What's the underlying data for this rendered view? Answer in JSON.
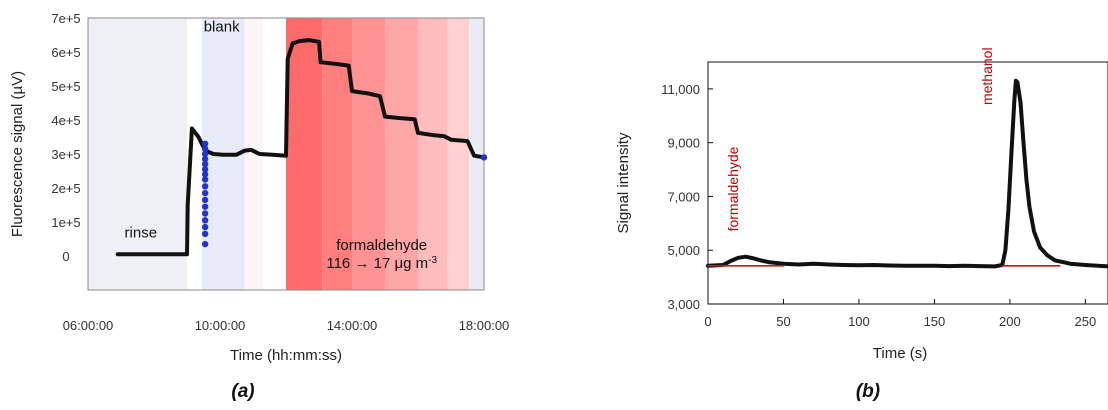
{
  "chart_data": [
    {
      "type": "line",
      "panel_label": "(a)",
      "xlabel": "Time (hh:mm:ss)",
      "ylabel": "Fluorescence signal (µV)",
      "xlim": [
        6.0,
        18.0
      ],
      "ylim": [
        -100000,
        700000
      ],
      "x_unit": "hours",
      "x_ticks": [
        {
          "value": 6,
          "label": "06:00:00"
        },
        {
          "value": 10,
          "label": "10:00:00"
        },
        {
          "value": 14,
          "label": "14:00:00"
        },
        {
          "value": 18,
          "label": "18:00:00"
        }
      ],
      "y_ticks": [
        {
          "value": 0,
          "label": "0"
        },
        {
          "value": 100000,
          "label": "1e+5"
        },
        {
          "value": 200000,
          "label": "2e+5"
        },
        {
          "value": 300000,
          "label": "3e+5"
        },
        {
          "value": 400000,
          "label": "4e+5"
        },
        {
          "value": 500000,
          "label": "5e+5"
        },
        {
          "value": 600000,
          "label": "6e+5"
        },
        {
          "value": 700000,
          "label": "7e+5"
        }
      ],
      "regions": [
        {
          "from": 6.0,
          "to": 9.0,
          "color": "#eef0f5"
        },
        {
          "from": 9.0,
          "to": 9.45,
          "color": "#ffffff"
        },
        {
          "from": 9.45,
          "to": 10.75,
          "color": "#e6ebf7"
        },
        {
          "from": 10.75,
          "to": 11.3,
          "color": "#fdf5f5"
        },
        {
          "from": 11.3,
          "to": 12.0,
          "color": "#ffffff"
        },
        {
          "from": 12.0,
          "to": 13.1,
          "color": "#ff6a6a"
        },
        {
          "from": 13.1,
          "to": 14.0,
          "color": "#ff7f7f"
        },
        {
          "from": 14.0,
          "to": 15.0,
          "color": "#ff9393"
        },
        {
          "from": 15.0,
          "to": 16.0,
          "color": "#ffa6a6"
        },
        {
          "from": 16.0,
          "to": 16.9,
          "color": "#ffbcbc"
        },
        {
          "from": 16.9,
          "to": 17.55,
          "color": "#ffd0d0"
        },
        {
          "from": 17.55,
          "to": 18.0,
          "color": "#e9ecf5"
        }
      ],
      "series": [
        {
          "color": "#111111",
          "x": [
            6.9,
            9.0,
            9.02,
            9.15,
            9.35,
            9.55,
            9.8,
            10.1,
            10.5,
            10.75,
            10.95,
            11.2,
            11.6,
            12.0,
            12.05,
            12.2,
            12.4,
            12.7,
            13.0,
            13.05,
            13.5,
            13.9,
            14.0,
            14.5,
            14.85,
            15.0,
            15.5,
            15.9,
            16.0,
            16.5,
            16.8,
            17.0,
            17.5,
            17.7,
            18.0
          ],
          "y": [
            5000,
            5000,
            150000,
            375000,
            350000,
            310000,
            300000,
            298000,
            298000,
            310000,
            312000,
            300000,
            298000,
            295000,
            580000,
            625000,
            632000,
            635000,
            630000,
            570000,
            565000,
            560000,
            485000,
            478000,
            470000,
            410000,
            405000,
            402000,
            362000,
            355000,
            352000,
            342000,
            338000,
            295000,
            290000
          ]
        },
        {
          "color": "#2233cc",
          "marker": "dot",
          "x": [
            9.55,
            9.55,
            9.55,
            9.55,
            9.55,
            9.55,
            9.55,
            9.55,
            9.55,
            9.55,
            9.55,
            9.55,
            9.55,
            9.55,
            9.55,
            9.55,
            9.55,
            18.0
          ],
          "y": [
            330000,
            315000,
            300000,
            285000,
            270000,
            255000,
            240000,
            225000,
            205000,
            185000,
            165000,
            145000,
            125000,
            105000,
            85000,
            65000,
            35000,
            290000
          ]
        }
      ],
      "annotations": [
        {
          "text": "rinse",
          "x": 7.6,
          "y": 55000
        },
        {
          "text": "blank",
          "x": 10.05,
          "y": 660000
        },
        {
          "text": "formaldehyde",
          "x": 14.9,
          "y": 18000
        },
        {
          "text": "116 → 17 μg m",
          "sup": "-3",
          "x": 14.9,
          "y": -35000
        }
      ]
    },
    {
      "type": "line",
      "panel_label": "(b)",
      "xlabel": "Time (s)",
      "ylabel": "Signal intensity",
      "xlim": [
        0,
        265
      ],
      "ylim": [
        3000,
        12000
      ],
      "x_ticks": [
        {
          "value": 0,
          "label": "0"
        },
        {
          "value": 50,
          "label": "50"
        },
        {
          "value": 100,
          "label": "100"
        },
        {
          "value": 150,
          "label": "150"
        },
        {
          "value": 200,
          "label": "200"
        },
        {
          "value": 250,
          "label": "250"
        }
      ],
      "y_ticks": [
        {
          "value": 3000,
          "label": "3,000"
        },
        {
          "value": 5000,
          "label": "5,000"
        },
        {
          "value": 7000,
          "label": "7,000"
        },
        {
          "value": 9000,
          "label": "9,000"
        },
        {
          "value": 11000,
          "label": "11,000"
        }
      ],
      "series": [
        {
          "color": "#111111",
          "x": [
            0,
            10,
            15,
            20,
            25,
            30,
            35,
            40,
            50,
            60,
            70,
            80,
            90,
            100,
            110,
            120,
            130,
            140,
            150,
            160,
            170,
            180,
            190,
            195,
            197,
            199,
            201,
            203,
            204,
            205,
            207,
            209,
            211,
            213,
            216,
            220,
            225,
            230,
            240,
            250,
            265
          ],
          "y": [
            4420,
            4450,
            4600,
            4720,
            4760,
            4700,
            4620,
            4560,
            4500,
            4470,
            4500,
            4470,
            4450,
            4440,
            4450,
            4430,
            4420,
            4420,
            4420,
            4410,
            4420,
            4410,
            4400,
            4450,
            5000,
            6500,
            8600,
            10600,
            11300,
            11250,
            10500,
            9000,
            7600,
            6600,
            5700,
            5100,
            4800,
            4620,
            4500,
            4450,
            4400
          ]
        },
        {
          "color": "#b22222",
          "x": [
            0,
            50
          ],
          "y": [
            4420,
            4420
          ]
        },
        {
          "color": "#b22222",
          "x": [
            195,
            233
          ],
          "y": [
            4420,
            4420
          ]
        }
      ],
      "annotations": [
        {
          "text": "formaldehyde",
          "x": 20,
          "y": 5700,
          "rotation": -90,
          "color": "#c00000"
        },
        {
          "text": "methanol",
          "x": 188,
          "y": 10400,
          "rotation": -90,
          "color": "#c00000"
        }
      ]
    }
  ]
}
